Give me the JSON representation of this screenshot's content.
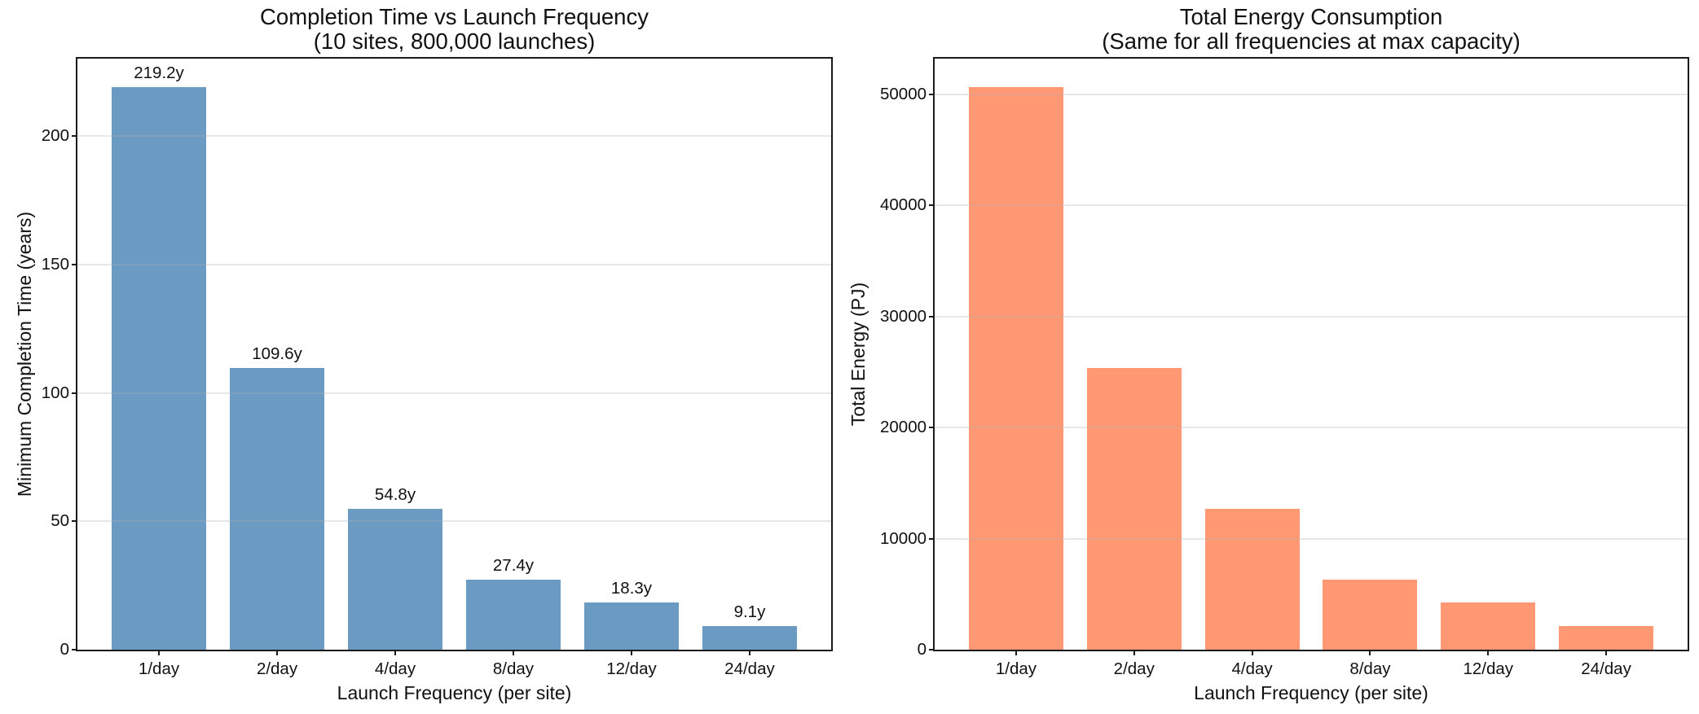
{
  "figure": {
    "background": "#ffffff",
    "text_color": "#111111",
    "spine_color": "#1a1a1a",
    "grid_color": "#b0b0b0"
  },
  "chart_data": [
    {
      "type": "bar",
      "title": "Completion Time vs Launch Frequency",
      "subtitle": "(10 sites, 800,000 launches)",
      "xlabel": "Launch Frequency (per site)",
      "ylabel": "Minimum Completion Time (years)",
      "categories": [
        "1/day",
        "2/day",
        "4/day",
        "8/day",
        "12/day",
        "24/day"
      ],
      "values": [
        219.2,
        109.6,
        54.8,
        27.4,
        18.3,
        9.1
      ],
      "bar_labels": [
        "219.2y",
        "109.6y",
        "54.8y",
        "27.4y",
        "18.3y",
        "9.1y"
      ],
      "yticks": [
        0,
        50,
        100,
        150,
        200
      ],
      "ytick_labels": [
        "0",
        "50",
        "100",
        "150",
        "200"
      ],
      "ylim": [
        0,
        230.2
      ],
      "bar_color": "#6b9bc3",
      "grid": "horizontal",
      "legend": null
    },
    {
      "type": "bar",
      "title": "Total Energy Consumption",
      "subtitle": "(Same for all frequencies at max capacity)",
      "xlabel": "Launch Frequency (per site)",
      "ylabel": "Total Energy (PJ)",
      "categories": [
        "1/day",
        "2/day",
        "4/day",
        "8/day",
        "12/day",
        "24/day"
      ],
      "values": [
        50660,
        25330,
        12665,
        6333,
        4222,
        2111
      ],
      "bar_labels": null,
      "yticks": [
        0,
        10000,
        20000,
        30000,
        40000,
        50000
      ],
      "ytick_labels": [
        "0",
        "10000",
        "20000",
        "30000",
        "40000",
        "50000"
      ],
      "ylim": [
        0,
        53193
      ],
      "bar_color": "#ff9873",
      "grid": "horizontal",
      "legend": null
    }
  ]
}
